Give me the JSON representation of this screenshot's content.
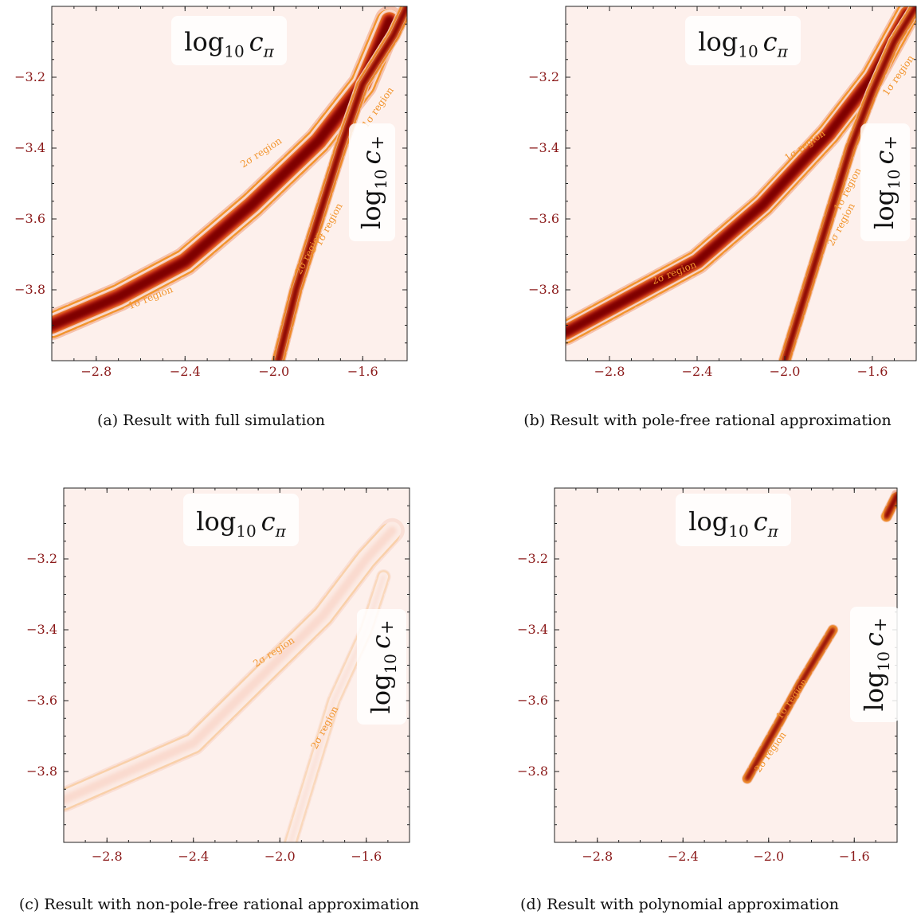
{
  "chart_data": [
    {
      "type": "heatmap",
      "caption": "(a) Result with full simulation",
      "label_pi_base": "log",
      "label_pi_sub": "10",
      "label_pi_var": "c",
      "label_pi_varsub": "π",
      "label_plus_base": "log",
      "label_plus_sub": "10",
      "label_plus_var": "c",
      "label_plus_varsub": "+",
      "x_ticks": [
        "−2.8",
        "−2.4",
        "−2.0",
        "−1.6"
      ],
      "y_ticks": [
        "−3.2",
        "−3.4",
        "−3.6",
        "−3.8"
      ],
      "xlim": [
        -3.0,
        -1.4
      ],
      "ylim": [
        -4.0,
        -3.0
      ],
      "bands": [
        {
          "points": [
            [
              -3.0,
              -3.9
            ],
            [
              -2.7,
              -3.82
            ],
            [
              -2.4,
              -3.72
            ],
            [
              -2.1,
              -3.56
            ],
            [
              -1.8,
              -3.38
            ],
            [
              -1.6,
              -3.22
            ],
            [
              -1.48,
              -3.04
            ]
          ],
          "core": 0.022,
          "inner": 0.038,
          "outer": 0.058,
          "opacity": 1.0
        },
        {
          "points": [
            [
              -1.98,
              -4.0
            ],
            [
              -1.9,
              -3.8
            ],
            [
              -1.8,
              -3.6
            ],
            [
              -1.7,
              -3.4
            ],
            [
              -1.6,
              -3.22
            ],
            [
              -1.46,
              -3.08
            ],
            [
              -1.4,
              -3.0
            ]
          ],
          "core": 0.01,
          "inner": 0.017,
          "outer": 0.028,
          "opacity": 1.0
        }
      ],
      "contour_labels": [
        {
          "text": "2σ region",
          "x": -2.05,
          "y": -3.42,
          "angle": -33
        },
        {
          "text": "1σ region",
          "x": -2.55,
          "y": -3.83,
          "angle": -22
        },
        {
          "text": "2σ region",
          "x": -1.83,
          "y": -3.7,
          "angle": -62
        },
        {
          "text": "1σ region",
          "x": -1.74,
          "y": -3.62,
          "angle": -62
        },
        {
          "text": "1σ region",
          "x": -1.52,
          "y": -3.29,
          "angle": -55
        }
      ]
    },
    {
      "type": "heatmap",
      "caption": "(b) Result with pole-free rational approximation",
      "label_pi_base": "log",
      "label_pi_sub": "10",
      "label_pi_var": "c",
      "label_pi_varsub": "π",
      "label_plus_base": "log",
      "label_plus_sub": "10",
      "label_plus_var": "c",
      "label_plus_varsub": "+",
      "x_ticks": [
        "−2.8",
        "−2.4",
        "−2.0",
        "−1.6"
      ],
      "y_ticks": [
        "−3.2",
        "−3.4",
        "−3.6",
        "−3.8"
      ],
      "xlim": [
        -3.0,
        -1.4
      ],
      "ylim": [
        -4.0,
        -3.0
      ],
      "bands": [
        {
          "points": [
            [
              -3.0,
              -3.92
            ],
            [
              -2.7,
              -3.82
            ],
            [
              -2.4,
              -3.72
            ],
            [
              -2.1,
              -3.56
            ],
            [
              -1.8,
              -3.36
            ],
            [
              -1.6,
              -3.2
            ],
            [
              -1.44,
              -3.02
            ]
          ],
          "core": 0.02,
          "inner": 0.034,
          "outer": 0.052,
          "opacity": 1.0
        },
        {
          "points": [
            [
              -2.0,
              -4.0
            ],
            [
              -1.9,
              -3.8
            ],
            [
              -1.8,
              -3.6
            ],
            [
              -1.7,
              -3.4
            ],
            [
              -1.6,
              -3.24
            ],
            [
              -1.5,
              -3.1
            ],
            [
              -1.4,
              -3.0
            ]
          ],
          "core": 0.01,
          "inner": 0.016,
          "outer": 0.026,
          "opacity": 1.0
        }
      ],
      "contour_labels": [
        {
          "text": "2σ region",
          "x": -2.5,
          "y": -3.76,
          "angle": -22
        },
        {
          "text": "1σ region",
          "x": -1.9,
          "y": -3.4,
          "angle": -35
        },
        {
          "text": "2σ region",
          "x": -1.73,
          "y": -3.62,
          "angle": -62
        },
        {
          "text": "1σ region",
          "x": -1.7,
          "y": -3.52,
          "angle": -62
        },
        {
          "text": "1σ region",
          "x": -1.47,
          "y": -3.2,
          "angle": -55
        }
      ]
    },
    {
      "type": "heatmap",
      "caption": "(c) Result with non-pole-free rational approximation",
      "label_pi_base": "log",
      "label_pi_sub": "10",
      "label_pi_var": "c",
      "label_pi_varsub": "π",
      "label_plus_base": "log",
      "label_plus_sub": "10",
      "label_plus_var": "c",
      "label_plus_varsub": "+",
      "x_ticks": [
        "−2.8",
        "−2.4",
        "−2.0",
        "−1.6"
      ],
      "y_ticks": [
        "−3.2",
        "−3.4",
        "−3.6",
        "−3.8"
      ],
      "xlim": [
        -3.0,
        -1.4
      ],
      "ylim": [
        -4.0,
        -3.0
      ],
      "bands": [
        {
          "points": [
            [
              -3.0,
              -3.88
            ],
            [
              -2.7,
              -3.8
            ],
            [
              -2.4,
              -3.72
            ],
            [
              -2.1,
              -3.54
            ],
            [
              -1.8,
              -3.36
            ],
            [
              -1.6,
              -3.2
            ],
            [
              -1.48,
              -3.12
            ]
          ],
          "core": 0.02,
          "inner": 0.03,
          "outer": 0.05,
          "opacity": 0.35
        },
        {
          "points": [
            [
              -1.95,
              -4.0
            ],
            [
              -1.85,
              -3.8
            ],
            [
              -1.75,
              -3.6
            ],
            [
              -1.6,
              -3.4
            ],
            [
              -1.52,
              -3.25
            ]
          ],
          "core": 0.008,
          "inner": 0.014,
          "outer": 0.03,
          "opacity": 0.25
        }
      ],
      "contour_labels": [
        {
          "text": "2σ region",
          "x": -2.02,
          "y": -3.47,
          "angle": -33
        },
        {
          "text": "2σ region",
          "x": -1.78,
          "y": -3.68,
          "angle": -62
        }
      ]
    },
    {
      "type": "heatmap",
      "caption": "(d) Result with polynomial approximation",
      "label_pi_base": "log",
      "label_pi_sub": "10",
      "label_pi_var": "c",
      "label_pi_varsub": "π",
      "label_plus_base": "log",
      "label_plus_sub": "10",
      "label_plus_var": "c",
      "label_plus_varsub": "+",
      "x_ticks": [
        "−2.8",
        "−2.4",
        "−2.0",
        "−1.6"
      ],
      "y_ticks": [
        "−3.2",
        "−3.4",
        "−3.6",
        "−3.8"
      ],
      "xlim": [
        -3.0,
        -1.4
      ],
      "ylim": [
        -4.0,
        -3.0
      ],
      "bands": [
        {
          "points": [
            [
              -2.1,
              -3.82
            ],
            [
              -1.95,
              -3.66
            ],
            [
              -1.85,
              -3.55
            ],
            [
              -1.7,
              -3.4
            ]
          ],
          "core": 0.008,
          "inner": 0.013,
          "outer": 0.022,
          "opacity": 1.0
        },
        {
          "points": [
            [
              -1.45,
              -3.08
            ],
            [
              -1.4,
              -3.02
            ]
          ],
          "core": 0.01,
          "inner": 0.016,
          "outer": 0.024,
          "opacity": 1.0
        }
      ],
      "contour_labels": [
        {
          "text": "1σ region",
          "x": -1.88,
          "y": -3.6,
          "angle": -55
        },
        {
          "text": "2σ region",
          "x": -1.98,
          "y": -3.75,
          "angle": -55
        }
      ]
    }
  ]
}
